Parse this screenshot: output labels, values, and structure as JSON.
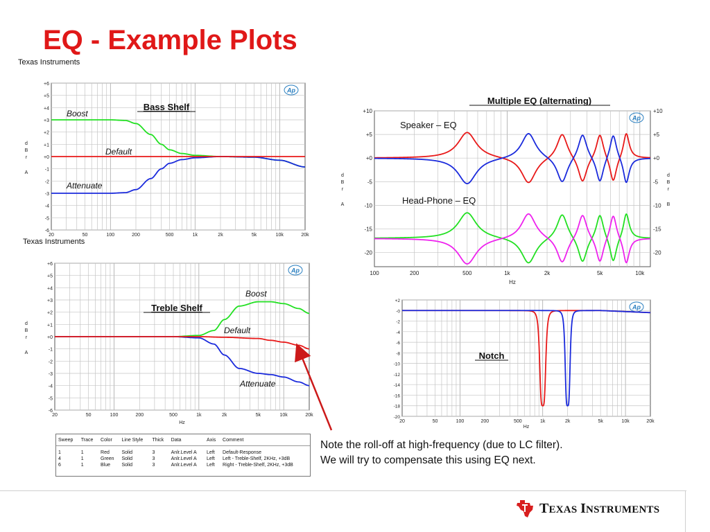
{
  "slide": {
    "title": "EQ - Example Plots",
    "brand_label_1": "Texas Instruments",
    "brand_label_2": "Texas Instruments",
    "note_line_1": "Note the  roll-off at high-frequency  (due to LC filter).",
    "note_line_2": "We will try to compensate this using EQ next.",
    "logo_text": "Texas Instruments",
    "logo_icon": "ti-logo-icon",
    "ap_badge": "Ap"
  },
  "colors": {
    "title": "#e01818",
    "red": "#e81818",
    "green": "#22e022",
    "blue": "#1a2adc",
    "magenta": "#ee22ee",
    "arrow": "#cc1a1a"
  },
  "legend_table": {
    "headers": [
      "Sweep",
      "Trace",
      "Color",
      "Line Style",
      "Thick",
      "Data",
      "Axis",
      "Comment"
    ],
    "rows": [
      [
        "1",
        "1",
        "Red",
        "Solid",
        "3",
        "Anlr.Level A",
        "Left",
        "Default-Response"
      ],
      [
        "4",
        "1",
        "Green",
        "Solid",
        "3",
        "Anlr.Level A",
        "Left",
        "Left - Treble-Shelf, 2KHz, +3dB"
      ],
      [
        "6",
        "1",
        "Blue",
        "Solid",
        "3",
        "Anlr.Level A",
        "Left",
        "Right - Treble-Shelf, 2KHz, +3dB"
      ]
    ]
  },
  "chart_data": [
    {
      "type": "line",
      "title": "Bass Shelf",
      "xlabel": "",
      "ylabel": "d B r  A",
      "x_scale": "log",
      "xlim": [
        20,
        20000
      ],
      "ylim": [
        -6,
        6
      ],
      "x_ticks": [
        20,
        50,
        100,
        200,
        500,
        1000,
        2000,
        5000,
        10000,
        20000
      ],
      "x_tick_labels": [
        "20",
        "50",
        "100",
        "200",
        "500",
        "1k",
        "2k",
        "5k",
        "10k",
        "20k"
      ],
      "y_ticks": [
        -6,
        -5,
        -4,
        -3,
        -2,
        -1,
        0,
        1,
        2,
        3,
        4,
        5,
        6
      ],
      "y_tick_labels": [
        "-6",
        "-5",
        "-4",
        "-3",
        "-2",
        "-1",
        "+0",
        "+1",
        "+2",
        "+3",
        "+4",
        "+5",
        "+6"
      ],
      "grid": true,
      "annotations": [
        "Boost",
        "Default",
        "Attenuate"
      ],
      "series": [
        {
          "name": "Boost",
          "color": "green",
          "x": [
            20,
            50,
            100,
            150,
            200,
            300,
            400,
            500,
            700,
            1000,
            2000,
            5000,
            10000,
            20000
          ],
          "y": [
            3,
            3,
            3,
            2.95,
            2.7,
            1.8,
            1,
            0.55,
            0.25,
            0.1,
            0,
            -0.05,
            -0.3,
            -0.85
          ]
        },
        {
          "name": "Default",
          "color": "red",
          "x": [
            20,
            50,
            100,
            200,
            500,
            1000,
            2000,
            5000,
            10000,
            20000
          ],
          "y": [
            0,
            0,
            0,
            0,
            0,
            0,
            0,
            0,
            0,
            0
          ]
        },
        {
          "name": "Attenuate",
          "color": "blue",
          "x": [
            20,
            50,
            100,
            150,
            200,
            300,
            400,
            500,
            700,
            1000,
            2000,
            5000,
            10000,
            20000
          ],
          "y": [
            -3,
            -3,
            -3,
            -2.95,
            -2.7,
            -1.8,
            -1,
            -0.55,
            -0.25,
            -0.1,
            0,
            -0.05,
            -0.3,
            -0.85
          ]
        }
      ]
    },
    {
      "type": "line",
      "title": "Treble Shelf",
      "xlabel": "Hz",
      "ylabel": "d B r  A",
      "x_scale": "log",
      "xlim": [
        20,
        20000
      ],
      "ylim": [
        -6,
        6
      ],
      "x_ticks": [
        20,
        50,
        100,
        200,
        500,
        1000,
        2000,
        5000,
        10000,
        20000
      ],
      "x_tick_labels": [
        "20",
        "50",
        "100",
        "200",
        "500",
        "1k",
        "2k",
        "5k",
        "10k",
        "20k"
      ],
      "y_ticks": [
        -6,
        -5,
        -4,
        -3,
        -2,
        -1,
        0,
        1,
        2,
        3,
        4,
        5,
        6
      ],
      "y_tick_labels": [
        "-6",
        "-5",
        "-4",
        "-3",
        "-2",
        "-1",
        "+0",
        "+1",
        "+2",
        "+3",
        "+4",
        "+5",
        "+6"
      ],
      "grid": true,
      "annotations": [
        "Boost",
        "Default",
        "Attenuate"
      ],
      "series": [
        {
          "name": "Boost",
          "color": "green",
          "x": [
            20,
            100,
            500,
            1000,
            1500,
            2000,
            3000,
            5000,
            7000,
            10000,
            15000,
            20000
          ],
          "y": [
            0,
            0,
            0,
            0.1,
            0.5,
            1.4,
            2.5,
            2.85,
            2.85,
            2.7,
            2.3,
            1.9
          ]
        },
        {
          "name": "Default",
          "color": "red",
          "x": [
            20,
            100,
            500,
            1000,
            2000,
            5000,
            7000,
            10000,
            15000,
            20000
          ],
          "y": [
            0,
            0,
            0,
            0,
            -0.05,
            -0.15,
            -0.3,
            -0.45,
            -0.7,
            -1
          ]
        },
        {
          "name": "Attenuate",
          "color": "blue",
          "x": [
            20,
            100,
            500,
            1000,
            1500,
            2000,
            3000,
            5000,
            7000,
            10000,
            15000,
            20000
          ],
          "y": [
            0,
            0,
            0,
            -0.1,
            -0.6,
            -1.5,
            -2.6,
            -3,
            -3.1,
            -3.3,
            -3.7,
            -4
          ]
        }
      ]
    },
    {
      "type": "line",
      "title": "Multiple EQ (alternating)",
      "xlabel": "Hz",
      "ylabel": "d B r  A",
      "ylabel_right": "d B r  B",
      "x_scale": "log",
      "xlim": [
        100,
        12000
      ],
      "ylim": [
        -23,
        10
      ],
      "x_ticks": [
        100,
        200,
        500,
        1000,
        2000,
        5000,
        10000
      ],
      "x_tick_labels": [
        "100",
        "200",
        "500",
        "1k",
        "2k",
        "5k",
        "10k"
      ],
      "y_ticks": [
        -20,
        -15,
        -10,
        -5,
        0,
        5,
        10
      ],
      "y_tick_labels": [
        "-20",
        "-15",
        "-10",
        "-5",
        "+0",
        "+5",
        "+10"
      ],
      "grid": true,
      "annotations": [
        "Speaker – EQ",
        "Head-Phone – EQ"
      ],
      "series": [
        {
          "name": "",
          "color": "red",
          "baseline": 0,
          "peaks": [
            {
              "f": 500,
              "g": 5.5,
              "bw": 0.14
            },
            {
              "f": 1450,
              "g": -5.5,
              "bw": 0.11
            },
            {
              "f": 2600,
              "g": 5.5,
              "bw": 0.08
            },
            {
              "f": 3700,
              "g": -5.5,
              "bw": 0.065
            },
            {
              "f": 5000,
              "g": 5.5,
              "bw": 0.055
            },
            {
              "f": 6300,
              "g": -5.5,
              "bw": 0.05
            },
            {
              "f": 7900,
              "g": 5.5,
              "bw": 0.045
            }
          ]
        },
        {
          "name": "",
          "color": "blue",
          "baseline": 0,
          "peaks": [
            {
              "f": 500,
              "g": -5.5,
              "bw": 0.14
            },
            {
              "f": 1450,
              "g": 5.5,
              "bw": 0.11
            },
            {
              "f": 2600,
              "g": -5.5,
              "bw": 0.08
            },
            {
              "f": 3700,
              "g": 5.5,
              "bw": 0.065
            },
            {
              "f": 5000,
              "g": -5.5,
              "bw": 0.055
            },
            {
              "f": 6300,
              "g": 5.5,
              "bw": 0.05
            },
            {
              "f": 7900,
              "g": -5.5,
              "bw": 0.045
            }
          ]
        },
        {
          "name": "",
          "color": "green",
          "baseline": -17,
          "peaks": [
            {
              "f": 500,
              "g": 5.5,
              "bw": 0.14
            },
            {
              "f": 1450,
              "g": -5.5,
              "bw": 0.11
            },
            {
              "f": 2600,
              "g": 5.5,
              "bw": 0.08
            },
            {
              "f": 3700,
              "g": -5.5,
              "bw": 0.065
            },
            {
              "f": 5000,
              "g": 5.5,
              "bw": 0.055
            },
            {
              "f": 6300,
              "g": -5.5,
              "bw": 0.05
            },
            {
              "f": 7900,
              "g": 5.5,
              "bw": 0.045
            }
          ]
        },
        {
          "name": "",
          "color": "magenta",
          "baseline": -17,
          "peaks": [
            {
              "f": 500,
              "g": -5.5,
              "bw": 0.14
            },
            {
              "f": 1450,
              "g": 5.5,
              "bw": 0.11
            },
            {
              "f": 2600,
              "g": -5.5,
              "bw": 0.08
            },
            {
              "f": 3700,
              "g": 5.5,
              "bw": 0.065
            },
            {
              "f": 5000,
              "g": -5.5,
              "bw": 0.055
            },
            {
              "f": 6300,
              "g": 5.5,
              "bw": 0.05
            },
            {
              "f": 7900,
              "g": -5.5,
              "bw": 0.045
            }
          ]
        }
      ]
    },
    {
      "type": "line",
      "title": "Notch",
      "xlabel": "Hz",
      "ylabel": "",
      "x_scale": "log",
      "xlim": [
        20,
        20000
      ],
      "ylim": [
        -20,
        2
      ],
      "x_ticks": [
        20,
        50,
        100,
        200,
        500,
        1000,
        2000,
        5000,
        10000,
        20000
      ],
      "x_tick_labels": [
        "20",
        "50",
        "100",
        "200",
        "500",
        "1k",
        "2k",
        "5k",
        "10k",
        "20k"
      ],
      "y_ticks": [
        -20,
        -18,
        -16,
        -14,
        -12,
        -10,
        -8,
        -6,
        -4,
        -2,
        0,
        2
      ],
      "y_tick_labels": [
        "-20",
        "-18",
        "-16",
        "-14",
        "-12",
        "-10",
        "-8",
        "-6",
        "-4",
        "-2",
        "-0",
        "+2"
      ],
      "grid": true,
      "series": [
        {
          "name": "",
          "color": "red",
          "baseline": 0,
          "notch": {
            "f": 1000,
            "g": -18,
            "bw": 0.055
          },
          "rolloff": -0.4
        },
        {
          "name": "",
          "color": "blue",
          "baseline": 0,
          "notch": {
            "f": 2000,
            "g": -18,
            "bw": 0.045
          },
          "rolloff": -0.4
        }
      ]
    }
  ]
}
